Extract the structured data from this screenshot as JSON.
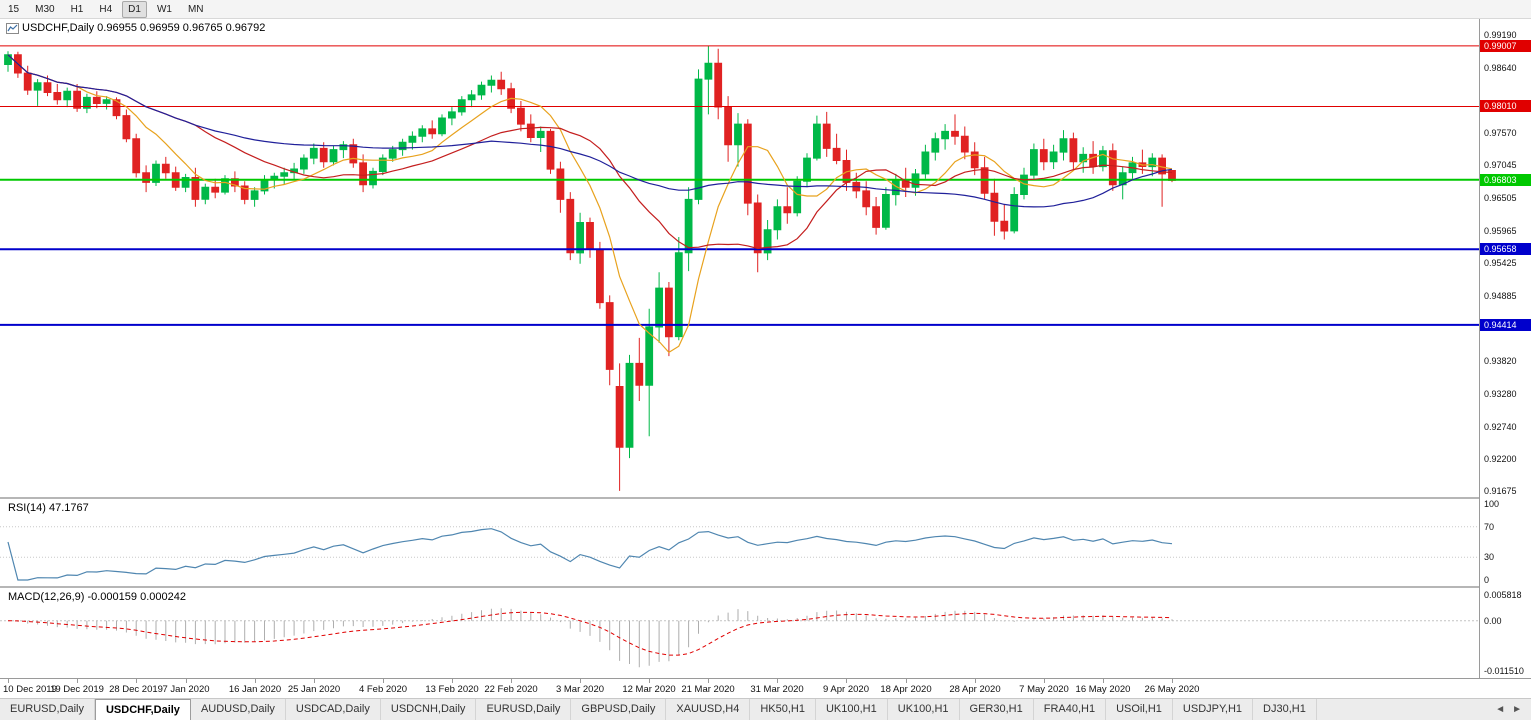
{
  "toolbar": {
    "timeframes": [
      "15",
      "M30",
      "H1",
      "H4",
      "D1",
      "W1",
      "MN"
    ],
    "active": "D1"
  },
  "main_panel": {
    "title": "USDCHF,Daily 0.96955 0.96959 0.96765 0.96792"
  },
  "rsi_panel": {
    "label": "RSI(14) 47.1767"
  },
  "macd_panel": {
    "label": "MACD(12,26,9) -0.000159 0.000242"
  },
  "chart_data": {
    "type": "candlestick",
    "symbol": "USDCHF",
    "timeframe": "Daily",
    "current_bar": {
      "open": 0.96955,
      "high": 0.96959,
      "low": 0.96765,
      "close": 0.96792
    },
    "ylim": [
      0.9158,
      0.9945
    ],
    "candle_colors": {
      "bull": "#00b848",
      "bear": "#e02222"
    },
    "candles": [
      [
        0.987,
        0.9892,
        0.9858,
        0.9886
      ],
      [
        0.9886,
        0.9891,
        0.9848,
        0.9856
      ],
      [
        0.9856,
        0.9868,
        0.982,
        0.9828
      ],
      [
        0.9828,
        0.9846,
        0.9802,
        0.984
      ],
      [
        0.984,
        0.9852,
        0.9818,
        0.9824
      ],
      [
        0.9824,
        0.9838,
        0.9804,
        0.9812
      ],
      [
        0.9812,
        0.9832,
        0.98,
        0.9826
      ],
      [
        0.9826,
        0.9838,
        0.9792,
        0.9798
      ],
      [
        0.9798,
        0.9822,
        0.979,
        0.9816
      ],
      [
        0.9816,
        0.9826,
        0.9798,
        0.9806
      ],
      [
        0.9806,
        0.9818,
        0.9796,
        0.9812
      ],
      [
        0.9812,
        0.9816,
        0.978,
        0.9786
      ],
      [
        0.9786,
        0.9796,
        0.9742,
        0.9748
      ],
      [
        0.9748,
        0.9756,
        0.9684,
        0.9692
      ],
      [
        0.9692,
        0.9704,
        0.966,
        0.9676
      ],
      [
        0.9676,
        0.9712,
        0.967,
        0.9706
      ],
      [
        0.9706,
        0.9718,
        0.9682,
        0.9692
      ],
      [
        0.9692,
        0.9702,
        0.9662,
        0.9668
      ],
      [
        0.9668,
        0.969,
        0.966,
        0.9684
      ],
      [
        0.9684,
        0.97,
        0.9636,
        0.9648
      ],
      [
        0.9648,
        0.9674,
        0.964,
        0.9668
      ],
      [
        0.9668,
        0.9682,
        0.965,
        0.966
      ],
      [
        0.966,
        0.9688,
        0.9656,
        0.9682
      ],
      [
        0.9682,
        0.9694,
        0.966,
        0.967
      ],
      [
        0.967,
        0.9678,
        0.964,
        0.9648
      ],
      [
        0.9648,
        0.9668,
        0.9636,
        0.9662
      ],
      [
        0.9662,
        0.9688,
        0.9656,
        0.968
      ],
      [
        0.968,
        0.9692,
        0.9666,
        0.9686
      ],
      [
        0.9686,
        0.97,
        0.9672,
        0.9692
      ],
      [
        0.9692,
        0.9708,
        0.968,
        0.9698
      ],
      [
        0.9698,
        0.9722,
        0.969,
        0.9716
      ],
      [
        0.9716,
        0.974,
        0.9706,
        0.9732
      ],
      [
        0.9732,
        0.9742,
        0.97,
        0.971
      ],
      [
        0.971,
        0.9736,
        0.9704,
        0.973
      ],
      [
        0.973,
        0.9744,
        0.9716,
        0.9738
      ],
      [
        0.9738,
        0.9748,
        0.97,
        0.9708
      ],
      [
        0.9708,
        0.9722,
        0.966,
        0.9672
      ],
      [
        0.9672,
        0.97,
        0.9666,
        0.9694
      ],
      [
        0.9694,
        0.9722,
        0.9688,
        0.9716
      ],
      [
        0.9716,
        0.9736,
        0.971,
        0.973
      ],
      [
        0.973,
        0.9748,
        0.972,
        0.9742
      ],
      [
        0.9742,
        0.976,
        0.973,
        0.9752
      ],
      [
        0.9752,
        0.977,
        0.9742,
        0.9764
      ],
      [
        0.9764,
        0.9778,
        0.9748,
        0.9756
      ],
      [
        0.9756,
        0.9788,
        0.9752,
        0.9782
      ],
      [
        0.9782,
        0.98,
        0.977,
        0.9792
      ],
      [
        0.9792,
        0.9818,
        0.9786,
        0.9812
      ],
      [
        0.9812,
        0.9828,
        0.98,
        0.982
      ],
      [
        0.982,
        0.9842,
        0.9812,
        0.9836
      ],
      [
        0.9836,
        0.9852,
        0.9824,
        0.9844
      ],
      [
        0.9844,
        0.9858,
        0.982,
        0.983
      ],
      [
        0.983,
        0.984,
        0.979,
        0.9798
      ],
      [
        0.9798,
        0.981,
        0.976,
        0.9772
      ],
      [
        0.9772,
        0.9788,
        0.9742,
        0.975
      ],
      [
        0.975,
        0.9768,
        0.9726,
        0.976
      ],
      [
        0.976,
        0.9764,
        0.969,
        0.9698
      ],
      [
        0.9698,
        0.971,
        0.9626,
        0.9648
      ],
      [
        0.9648,
        0.966,
        0.9548,
        0.956
      ],
      [
        0.956,
        0.9626,
        0.9542,
        0.961
      ],
      [
        0.961,
        0.9618,
        0.9552,
        0.9566
      ],
      [
        0.9566,
        0.9578,
        0.9468,
        0.9478
      ],
      [
        0.9478,
        0.949,
        0.9342,
        0.9368
      ],
      [
        0.934,
        0.9378,
        0.9168,
        0.924
      ],
      [
        0.924,
        0.9392,
        0.9222,
        0.9378
      ],
      [
        0.9378,
        0.942,
        0.9316,
        0.9342
      ],
      [
        0.9342,
        0.9468,
        0.9258,
        0.9438
      ],
      [
        0.9438,
        0.9528,
        0.9412,
        0.9502
      ],
      [
        0.9502,
        0.9512,
        0.939,
        0.9422
      ],
      [
        0.9422,
        0.9586,
        0.9416,
        0.956
      ],
      [
        0.956,
        0.9668,
        0.953,
        0.9648
      ],
      [
        0.9648,
        0.9862,
        0.964,
        0.9846
      ],
      [
        0.9846,
        0.9901,
        0.9788,
        0.9872
      ],
      [
        0.9872,
        0.9896,
        0.978,
        0.98
      ],
      [
        0.98,
        0.9818,
        0.971,
        0.9738
      ],
      [
        0.9738,
        0.979,
        0.9702,
        0.9772
      ],
      [
        0.9772,
        0.978,
        0.9622,
        0.9642
      ],
      [
        0.9642,
        0.9656,
        0.9528,
        0.956
      ],
      [
        0.956,
        0.9614,
        0.9548,
        0.9598
      ],
      [
        0.9598,
        0.9648,
        0.9582,
        0.9636
      ],
      [
        0.9636,
        0.9668,
        0.9608,
        0.9626
      ],
      [
        0.9626,
        0.9686,
        0.962,
        0.9678
      ],
      [
        0.9678,
        0.9724,
        0.9668,
        0.9716
      ],
      [
        0.9716,
        0.9786,
        0.9712,
        0.9772
      ],
      [
        0.9772,
        0.9792,
        0.9718,
        0.9732
      ],
      [
        0.9732,
        0.9756,
        0.9706,
        0.9712
      ],
      [
        0.9712,
        0.973,
        0.9662,
        0.9676
      ],
      [
        0.9676,
        0.9692,
        0.965,
        0.9662
      ],
      [
        0.9662,
        0.9678,
        0.9622,
        0.9636
      ],
      [
        0.9636,
        0.9652,
        0.959,
        0.9602
      ],
      [
        0.9602,
        0.9668,
        0.9598,
        0.9656
      ],
      [
        0.9656,
        0.969,
        0.9638,
        0.968
      ],
      [
        0.968,
        0.97,
        0.9652,
        0.9668
      ],
      [
        0.9668,
        0.9698,
        0.9654,
        0.969
      ],
      [
        0.969,
        0.9738,
        0.9682,
        0.9726
      ],
      [
        0.9726,
        0.9758,
        0.9712,
        0.9748
      ],
      [
        0.9748,
        0.9772,
        0.973,
        0.976
      ],
      [
        0.976,
        0.9788,
        0.9738,
        0.9752
      ],
      [
        0.9752,
        0.9768,
        0.9714,
        0.9726
      ],
      [
        0.9726,
        0.9742,
        0.9688,
        0.97
      ],
      [
        0.97,
        0.9718,
        0.9648,
        0.9658
      ],
      [
        0.9658,
        0.9682,
        0.9588,
        0.9612
      ],
      [
        0.9612,
        0.964,
        0.9582,
        0.9596
      ],
      [
        0.9596,
        0.9668,
        0.9592,
        0.9656
      ],
      [
        0.9656,
        0.97,
        0.9648,
        0.9688
      ],
      [
        0.9688,
        0.974,
        0.9682,
        0.973
      ],
      [
        0.973,
        0.9748,
        0.9696,
        0.971
      ],
      [
        0.971,
        0.9738,
        0.9698,
        0.9726
      ],
      [
        0.9726,
        0.9762,
        0.9712,
        0.9748
      ],
      [
        0.9748,
        0.9758,
        0.9698,
        0.971
      ],
      [
        0.971,
        0.9734,
        0.9692,
        0.9722
      ],
      [
        0.9722,
        0.9744,
        0.969,
        0.9702
      ],
      [
        0.9702,
        0.9736,
        0.9694,
        0.9728
      ],
      [
        0.9728,
        0.974,
        0.9662,
        0.9672
      ],
      [
        0.9672,
        0.9702,
        0.9648,
        0.9692
      ],
      [
        0.9692,
        0.9718,
        0.9682,
        0.9708
      ],
      [
        0.9708,
        0.973,
        0.969,
        0.9702
      ],
      [
        0.9702,
        0.9724,
        0.9686,
        0.9716
      ],
      [
        0.9716,
        0.9722,
        0.9636,
        0.969
      ],
      [
        0.96955,
        0.96959,
        0.96765,
        0.96792
      ]
    ],
    "x_ticks": [
      {
        "i": 0,
        "label": "10 Dec 2019"
      },
      {
        "i": 7,
        "label": "19 Dec 2019"
      },
      {
        "i": 13,
        "label": "28 Dec 2019"
      },
      {
        "i": 18,
        "label": "7 Jan 2020"
      },
      {
        "i": 25,
        "label": "16 Jan 2020"
      },
      {
        "i": 31,
        "label": "25 Jan 2020"
      },
      {
        "i": 38,
        "label": "4 Feb 2020"
      },
      {
        "i": 45,
        "label": "13 Feb 2020"
      },
      {
        "i": 51,
        "label": "22 Feb 2020"
      },
      {
        "i": 58,
        "label": "3 Mar 2020"
      },
      {
        "i": 65,
        "label": "12 Mar 2020"
      },
      {
        "i": 71,
        "label": "21 Mar 2020"
      },
      {
        "i": 78,
        "label": "31 Mar 2020"
      },
      {
        "i": 85,
        "label": "9 Apr 2020"
      },
      {
        "i": 91,
        "label": "18 Apr 2020"
      },
      {
        "i": 98,
        "label": "28 Apr 2020"
      },
      {
        "i": 105,
        "label": "7 May 2020"
      },
      {
        "i": 111,
        "label": "16 May 2020"
      },
      {
        "i": 118,
        "label": "26 May 2020"
      }
    ],
    "y_axis_labels": [
      "0.99190",
      "0.98640",
      "0.97570",
      "0.97045",
      "0.96505",
      "0.95965",
      "0.95425",
      "0.94885",
      "0.93820",
      "0.93280",
      "0.92740",
      "0.92200",
      "0.91675"
    ],
    "hlines": [
      {
        "price": 0.99007,
        "label": "0.99007",
        "color": "#e00000",
        "width": 1
      },
      {
        "price": 0.9801,
        "label": "0.98010",
        "color": "#e00000",
        "width": 1
      },
      {
        "price": 0.96803,
        "label": "0.96803",
        "color": "#00c800",
        "width": 2
      },
      {
        "price": 0.95658,
        "label": "0.95658",
        "color": "#0000cc",
        "width": 2
      },
      {
        "price": 0.94414,
        "label": "0.94414",
        "color": "#0000cc",
        "width": 2
      }
    ],
    "moving_averages": [
      {
        "period": 8,
        "color": "#e8a21e"
      },
      {
        "period": 20,
        "color": "#c41e1e"
      },
      {
        "period": 50,
        "color": "#20209a"
      }
    ],
    "rsi": {
      "period": 14,
      "value": "47.1767",
      "line_color": "#4f86b0",
      "levels": [
        "100",
        "70",
        "30",
        "0"
      ],
      "level_lines": [
        70,
        30
      ]
    },
    "macd": {
      "fast": 12,
      "slow": 26,
      "signal": 9,
      "main_value": "-0.000159",
      "signal_value": "0.000242",
      "hist_color": "#aeaeae",
      "signal_color": "#e00000",
      "y_labels": [
        {
          "value": 0.005818,
          "label": "0.005818"
        },
        {
          "value": 0,
          "label": "0.00"
        },
        {
          "value": -0.01151,
          "label": "-0.011510"
        }
      ]
    }
  },
  "tabs": {
    "items": [
      "EURUSD,Daily",
      "USDCHF,Daily",
      "AUDUSD,Daily",
      "USDCAD,Daily",
      "USDCNH,Daily",
      "EURUSD,Daily",
      "GBPUSD,Daily",
      "XAUUSD,H4",
      "HK50,H1",
      "UK100,H1",
      "UK100,H1",
      "GER30,H1",
      "FRA40,H1",
      "USOil,H1",
      "USDJPY,H1",
      "DJ30,H1"
    ],
    "active_index": 1,
    "scroll_left": "◄",
    "scroll_right": "►"
  }
}
